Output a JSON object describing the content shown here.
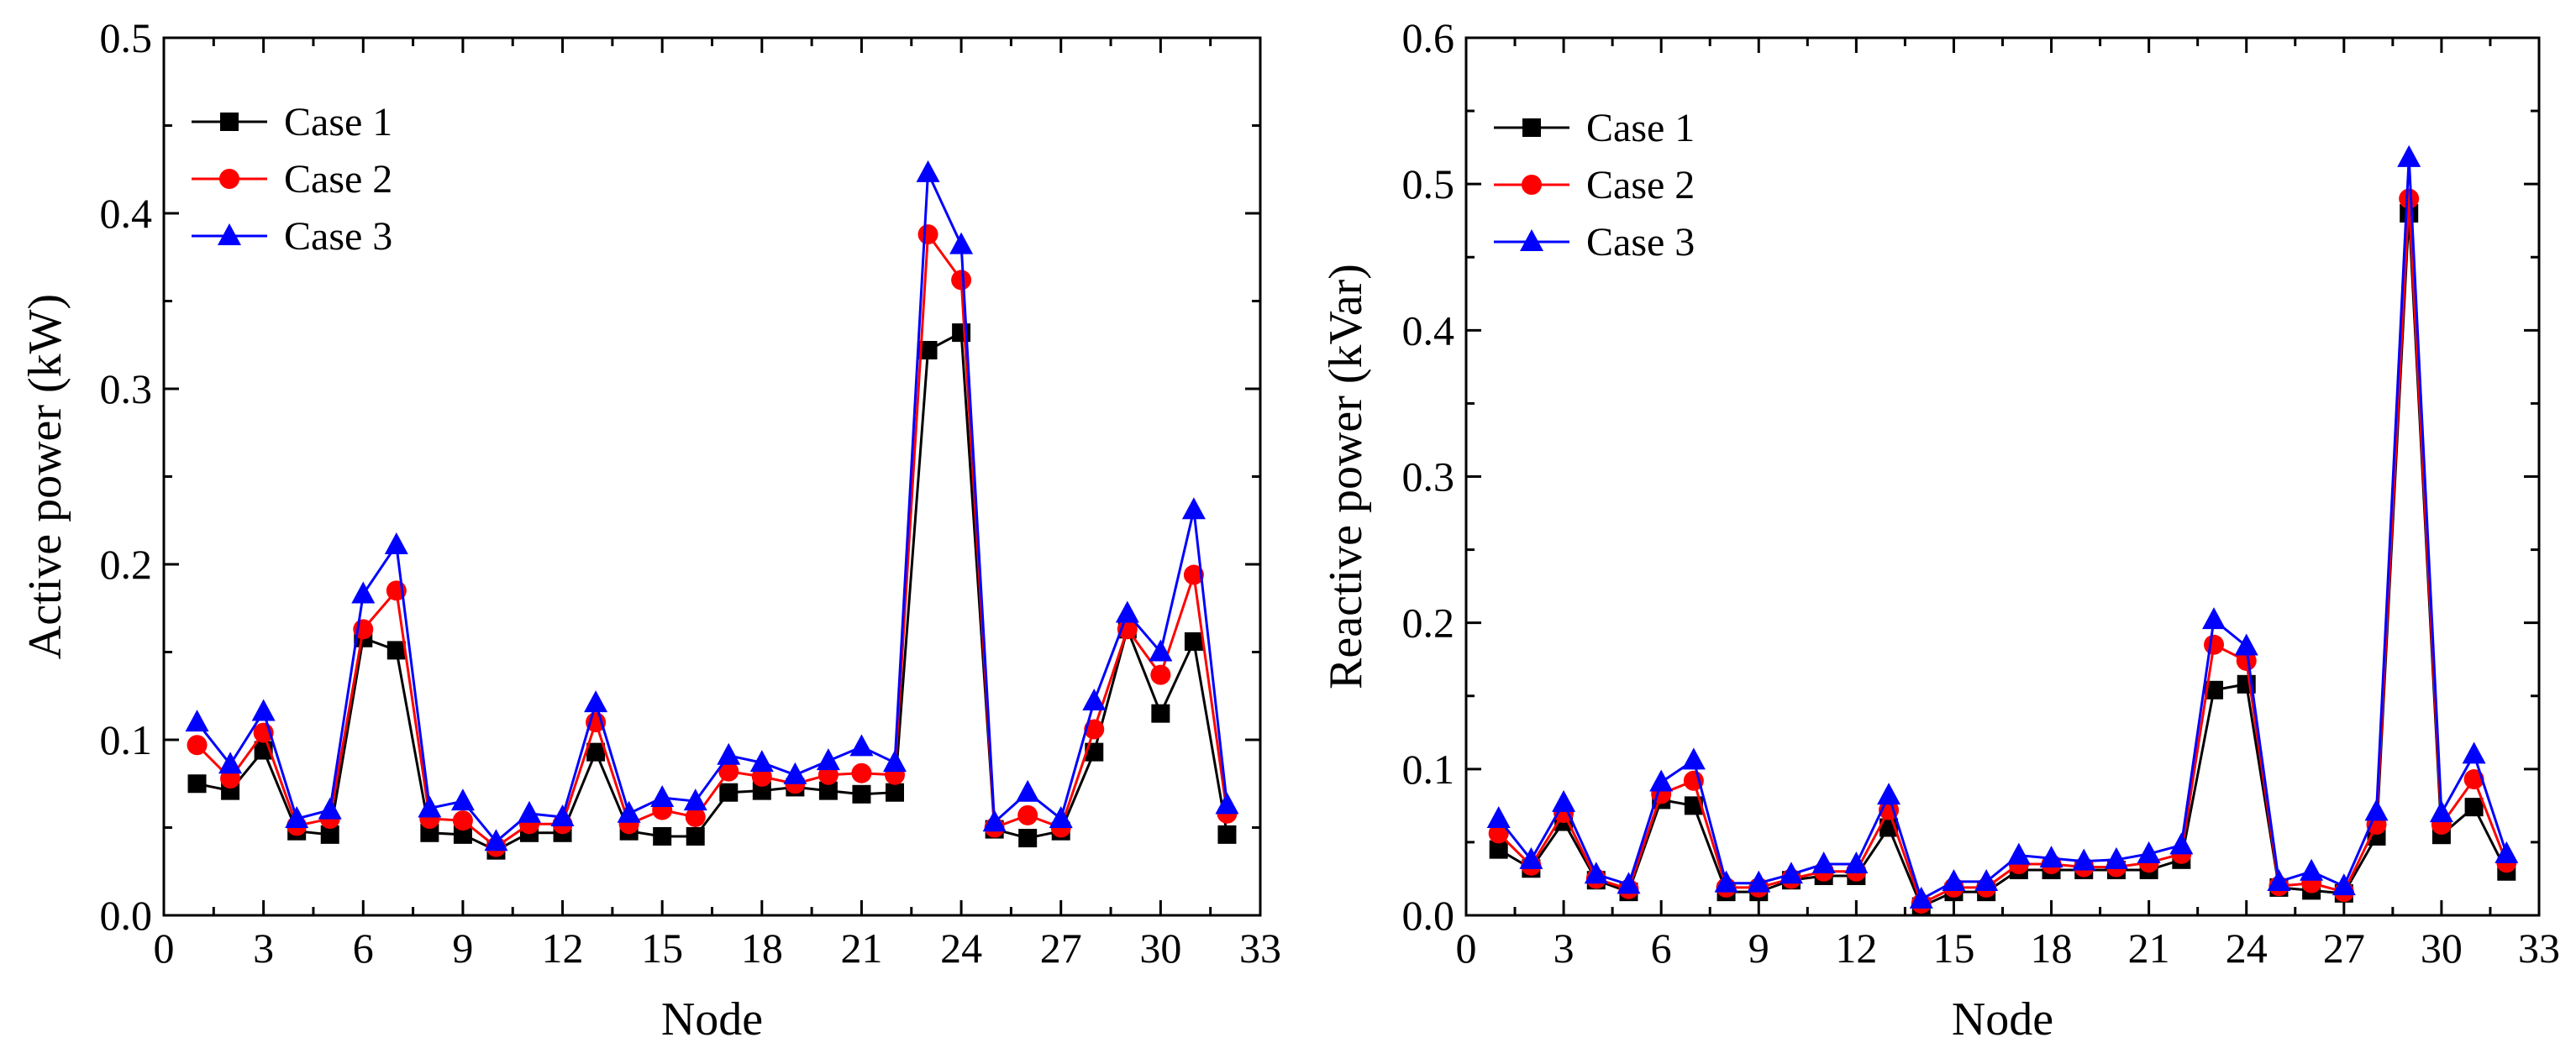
{
  "chart_data": [
    {
      "type": "line",
      "title": "",
      "xlabel": "Node",
      "ylabel": "Active power (kW)",
      "xlim": [
        0,
        33
      ],
      "ylim": [
        0.0,
        0.5
      ],
      "xticks": [
        0,
        3,
        6,
        9,
        12,
        15,
        18,
        21,
        24,
        27,
        30,
        33
      ],
      "yticks": [
        0.0,
        0.1,
        0.2,
        0.3,
        0.4,
        0.5
      ],
      "ytick_labels": [
        "0.0",
        "0.1",
        "0.2",
        "0.3",
        "0.4",
        "0.5"
      ],
      "legend_position": "top-left",
      "x": [
        1,
        2,
        3,
        4,
        5,
        6,
        7,
        8,
        9,
        10,
        11,
        12,
        13,
        14,
        15,
        16,
        17,
        18,
        19,
        20,
        21,
        22,
        23,
        24,
        25,
        26,
        27,
        28,
        29,
        30,
        31,
        32
      ],
      "series": [
        {
          "name": "Case 1",
          "color": "#000000",
          "marker": "square",
          "values": [
            0.075,
            0.071,
            0.094,
            0.048,
            0.046,
            0.158,
            0.151,
            0.047,
            0.046,
            0.037,
            0.047,
            0.047,
            0.093,
            0.048,
            0.045,
            0.045,
            0.07,
            0.071,
            0.073,
            0.071,
            0.069,
            0.07,
            0.322,
            0.332,
            0.049,
            0.044,
            0.048,
            0.093,
            0.163,
            0.115,
            0.156,
            0.046
          ]
        },
        {
          "name": "Case 2",
          "color": "#ff0000",
          "marker": "circle",
          "values": [
            0.097,
            0.078,
            0.104,
            0.051,
            0.055,
            0.163,
            0.185,
            0.055,
            0.054,
            0.039,
            0.052,
            0.052,
            0.11,
            0.052,
            0.06,
            0.056,
            0.082,
            0.079,
            0.075,
            0.08,
            0.081,
            0.08,
            0.388,
            0.362,
            0.05,
            0.057,
            0.05,
            0.106,
            0.163,
            0.137,
            0.194,
            0.058
          ]
        },
        {
          "name": "Case 3",
          "color": "#0000ff",
          "marker": "triangle",
          "values": [
            0.11,
            0.086,
            0.116,
            0.055,
            0.06,
            0.183,
            0.211,
            0.061,
            0.065,
            0.042,
            0.058,
            0.056,
            0.121,
            0.058,
            0.067,
            0.065,
            0.091,
            0.087,
            0.08,
            0.088,
            0.096,
            0.087,
            0.423,
            0.382,
            0.053,
            0.07,
            0.055,
            0.122,
            0.172,
            0.15,
            0.231,
            0.063
          ]
        }
      ]
    },
    {
      "type": "line",
      "title": "",
      "xlabel": "Node",
      "ylabel": "Reactive power (kVar)",
      "xlim": [
        0,
        33
      ],
      "ylim": [
        0.0,
        0.6
      ],
      "xticks": [
        0,
        3,
        6,
        9,
        12,
        15,
        18,
        21,
        24,
        27,
        30,
        33
      ],
      "yticks": [
        0.0,
        0.1,
        0.2,
        0.3,
        0.4,
        0.5,
        0.6
      ],
      "ytick_labels": [
        "0.0",
        "0.1",
        "0.2",
        "0.3",
        "0.4",
        "0.5",
        "0.6"
      ],
      "legend_position": "top-left",
      "x": [
        1,
        2,
        3,
        4,
        5,
        6,
        7,
        8,
        9,
        10,
        11,
        12,
        13,
        14,
        15,
        16,
        17,
        18,
        19,
        20,
        21,
        22,
        23,
        24,
        25,
        26,
        27,
        28,
        29,
        30,
        31,
        32
      ],
      "series": [
        {
          "name": "Case 1",
          "color": "#000000",
          "marker": "square",
          "values": [
            0.045,
            0.032,
            0.064,
            0.024,
            0.016,
            0.079,
            0.075,
            0.016,
            0.016,
            0.024,
            0.027,
            0.027,
            0.06,
            0.006,
            0.016,
            0.016,
            0.031,
            0.031,
            0.031,
            0.031,
            0.031,
            0.038,
            0.154,
            0.158,
            0.019,
            0.017,
            0.015,
            0.054,
            0.48,
            0.055,
            0.074,
            0.03
          ]
        },
        {
          "name": "Case 2",
          "color": "#ff0000",
          "marker": "circle",
          "values": [
            0.056,
            0.034,
            0.07,
            0.025,
            0.018,
            0.083,
            0.092,
            0.019,
            0.019,
            0.025,
            0.03,
            0.03,
            0.072,
            0.008,
            0.019,
            0.019,
            0.035,
            0.035,
            0.033,
            0.033,
            0.036,
            0.042,
            0.185,
            0.174,
            0.02,
            0.022,
            0.016,
            0.062,
            0.49,
            0.062,
            0.093,
            0.036
          ]
        },
        {
          "name": "Case 3",
          "color": "#0000ff",
          "marker": "triangle",
          "values": [
            0.066,
            0.038,
            0.077,
            0.028,
            0.021,
            0.091,
            0.106,
            0.022,
            0.022,
            0.028,
            0.035,
            0.035,
            0.082,
            0.011,
            0.023,
            0.023,
            0.041,
            0.039,
            0.037,
            0.038,
            0.042,
            0.048,
            0.202,
            0.184,
            0.023,
            0.03,
            0.02,
            0.071,
            0.518,
            0.07,
            0.11,
            0.042
          ]
        }
      ]
    }
  ]
}
